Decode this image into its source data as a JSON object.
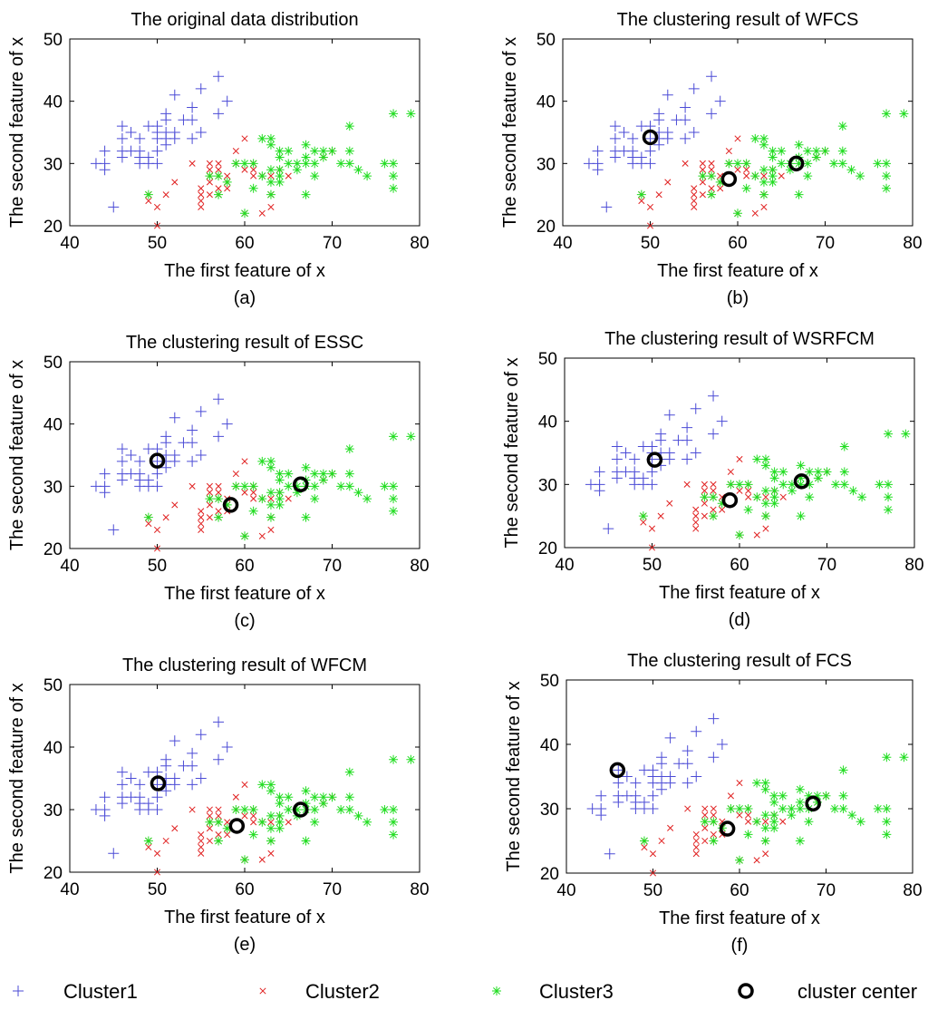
{
  "chart_data": {
    "type": "scatter",
    "legend": {
      "position": "bottom",
      "entries": [
        {
          "label": "Cluster1",
          "marker": "plus",
          "color": "#4b4bd6"
        },
        {
          "label": "Cluster2",
          "marker": "x",
          "color": "#e02020"
        },
        {
          "label": "Cluster3",
          "marker": "star",
          "color": "#22dd22"
        },
        {
          "label": "cluster center",
          "marker": "circle",
          "color": "#000000"
        }
      ]
    },
    "series": [
      {
        "name": "Cluster1",
        "marker": "plus",
        "color": "#4b4bd6",
        "points": [
          [
            43,
            30
          ],
          [
            44,
            30
          ],
          [
            44,
            32
          ],
          [
            44,
            29
          ],
          [
            45,
            23
          ],
          [
            46,
            31
          ],
          [
            46,
            32
          ],
          [
            46,
            34
          ],
          [
            46,
            36
          ],
          [
            47,
            32
          ],
          [
            47,
            35
          ],
          [
            48,
            31
          ],
          [
            48,
            30
          ],
          [
            48,
            34
          ],
          [
            48,
            32
          ],
          [
            49,
            30
          ],
          [
            49,
            31
          ],
          [
            49,
            36
          ],
          [
            50,
            30
          ],
          [
            50,
            32
          ],
          [
            50,
            34
          ],
          [
            50,
            35
          ],
          [
            50,
            36
          ],
          [
            51,
            33
          ],
          [
            51,
            35
          ],
          [
            51,
            34
          ],
          [
            51,
            38
          ],
          [
            51,
            37
          ],
          [
            52,
            34
          ],
          [
            52,
            35
          ],
          [
            52,
            41
          ],
          [
            53,
            37
          ],
          [
            54,
            34
          ],
          [
            54,
            37
          ],
          [
            54,
            39
          ],
          [
            55,
            35
          ],
          [
            55,
            42
          ],
          [
            57,
            38
          ],
          [
            57,
            44
          ],
          [
            58,
            40
          ]
        ]
      },
      {
        "name": "Cluster2",
        "marker": "x",
        "color": "#e02020",
        "points": [
          [
            49,
            24
          ],
          [
            49,
            25
          ],
          [
            50,
            20
          ],
          [
            50,
            23
          ],
          [
            51,
            25
          ],
          [
            52,
            27
          ],
          [
            54,
            30
          ],
          [
            55,
            23
          ],
          [
            55,
            24
          ],
          [
            55,
            25
          ],
          [
            55,
            26
          ],
          [
            56,
            25
          ],
          [
            56,
            27
          ],
          [
            56,
            28
          ],
          [
            56,
            29
          ],
          [
            56,
            30
          ],
          [
            57,
            25
          ],
          [
            57,
            26
          ],
          [
            57,
            28
          ],
          [
            57,
            29
          ],
          [
            57,
            30
          ],
          [
            58,
            26
          ],
          [
            58,
            27
          ],
          [
            58,
            28
          ],
          [
            59,
            30
          ],
          [
            59,
            32
          ],
          [
            60,
            22
          ],
          [
            60,
            34
          ],
          [
            60,
            29
          ],
          [
            61,
            28
          ],
          [
            61,
            29
          ],
          [
            61,
            30
          ],
          [
            62,
            22
          ],
          [
            62,
            28
          ],
          [
            63,
            23
          ],
          [
            63,
            25
          ],
          [
            63,
            28
          ],
          [
            64,
            29
          ],
          [
            65,
            28
          ],
          [
            69,
            31
          ],
          [
            70,
            32
          ]
        ]
      },
      {
        "name": "Cluster3",
        "marker": "star",
        "color": "#22dd22",
        "points": [
          [
            49,
            25
          ],
          [
            56,
            28
          ],
          [
            57,
            25
          ],
          [
            57,
            28
          ],
          [
            58,
            27
          ],
          [
            59,
            30
          ],
          [
            60,
            22
          ],
          [
            60,
            30
          ],
          [
            61,
            26
          ],
          [
            61,
            30
          ],
          [
            62,
            28
          ],
          [
            62,
            34
          ],
          [
            63,
            25
          ],
          [
            63,
            27
          ],
          [
            63,
            29
          ],
          [
            63,
            33
          ],
          [
            63,
            34
          ],
          [
            64,
            27
          ],
          [
            64,
            28
          ],
          [
            64,
            29
          ],
          [
            64,
            31
          ],
          [
            64,
            32
          ],
          [
            65,
            30
          ],
          [
            65,
            32
          ],
          [
            66,
            29
          ],
          [
            66,
            30
          ],
          [
            67,
            25
          ],
          [
            67,
            30
          ],
          [
            67,
            31
          ],
          [
            67,
            33
          ],
          [
            68,
            28
          ],
          [
            68,
            30
          ],
          [
            68,
            32
          ],
          [
            69,
            31
          ],
          [
            69,
            32
          ],
          [
            70,
            32
          ],
          [
            71,
            30
          ],
          [
            72,
            30
          ],
          [
            72,
            32
          ],
          [
            72,
            36
          ],
          [
            73,
            29
          ],
          [
            74,
            28
          ],
          [
            76,
            30
          ],
          [
            77,
            26
          ],
          [
            77,
            28
          ],
          [
            77,
            30
          ],
          [
            77,
            38
          ],
          [
            79,
            38
          ]
        ]
      }
    ],
    "subplots": [
      {
        "id": "a",
        "title": "The original data distribution",
        "caption": "(a)",
        "xlabel": "The first feature of x",
        "ylabel": "The second feature of x",
        "xlim": [
          40,
          80
        ],
        "ylim": [
          20,
          50
        ],
        "xticks": [
          "40",
          "50",
          "60",
          "70",
          "80"
        ],
        "yticks": [
          "20",
          "30",
          "40",
          "50"
        ],
        "centers": []
      },
      {
        "id": "b",
        "title": "The clustering result of WFCS",
        "caption": "(b)",
        "xlabel": "The first feature of x",
        "ylabel": "The second feature of x",
        "xlim": [
          40,
          80
        ],
        "ylim": [
          20,
          50
        ],
        "xticks": [
          "40",
          "50",
          "60",
          "70",
          "80"
        ],
        "yticks": [
          "20",
          "30",
          "40",
          "50"
        ],
        "centers": [
          [
            50.0,
            34.2
          ],
          [
            59.0,
            27.5
          ],
          [
            66.7,
            30.0
          ]
        ]
      },
      {
        "id": "c",
        "title": "The clustering result of ESSC",
        "caption": "(c)",
        "xlabel": "The first feature of x",
        "ylabel": "The second feature of x",
        "xlim": [
          40,
          80
        ],
        "ylim": [
          20,
          50
        ],
        "xticks": [
          "40",
          "50",
          "60",
          "70",
          "80"
        ],
        "yticks": [
          "20",
          "30",
          "40",
          "50"
        ],
        "centers": [
          [
            50.0,
            34.1
          ],
          [
            58.4,
            27.0
          ],
          [
            66.4,
            30.3
          ]
        ]
      },
      {
        "id": "d",
        "title": "The clustering result of WSRFCM",
        "caption": "(d)",
        "xlabel": "The first feature of x",
        "ylabel": "The second feature of x",
        "xlim": [
          40,
          80
        ],
        "ylim": [
          20,
          50
        ],
        "xticks": [
          "40",
          "50",
          "60",
          "70",
          "80"
        ],
        "yticks": [
          "20",
          "30",
          "40",
          "50"
        ],
        "centers": [
          [
            50.3,
            33.9
          ],
          [
            58.9,
            27.5
          ],
          [
            67.1,
            30.5
          ]
        ]
      },
      {
        "id": "e",
        "title": "The clustering result of WFCM",
        "caption": "(e)",
        "xlabel": "The first feature of x",
        "ylabel": "The second feature of x",
        "xlim": [
          40,
          80
        ],
        "ylim": [
          20,
          50
        ],
        "xticks": [
          "40",
          "50",
          "60",
          "70",
          "80"
        ],
        "yticks": [
          "20",
          "30",
          "40",
          "50"
        ],
        "centers": [
          [
            50.1,
            34.2
          ],
          [
            59.1,
            27.4
          ],
          [
            66.4,
            30.0
          ]
        ]
      },
      {
        "id": "f",
        "title": "The clustering result of FCS",
        "caption": "(f)",
        "xlabel": "The first feature of x",
        "ylabel": "The second feature of x",
        "xlim": [
          40,
          80
        ],
        "ylim": [
          20,
          50
        ],
        "xticks": [
          "40",
          "50",
          "60",
          "70",
          "80"
        ],
        "yticks": [
          "20",
          "30",
          "40",
          "50"
        ],
        "centers": [
          [
            45.9,
            36.0
          ],
          [
            58.6,
            26.9
          ],
          [
            68.5,
            30.8
          ]
        ]
      }
    ]
  }
}
